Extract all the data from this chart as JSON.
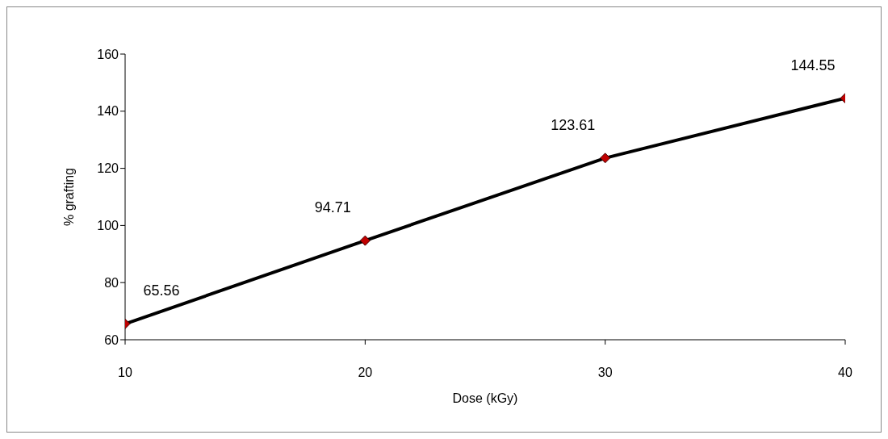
{
  "chart_data": {
    "type": "line",
    "xlabel": "Dose (kGy)",
    "ylabel": "% grafting",
    "x": [
      10,
      20,
      30,
      40
    ],
    "series": [
      {
        "color": "#000000",
        "values": [
          65.56,
          94.71,
          123.61,
          144.55
        ]
      }
    ],
    "xlim": [
      10,
      40
    ],
    "xticks": [
      10,
      20,
      30,
      40
    ],
    "ylim": [
      60,
      160
    ],
    "yticks": [
      60,
      80,
      100,
      120,
      140,
      160
    ],
    "grid": false,
    "legend": false,
    "marker": "diamond",
    "line_style": "solid",
    "data_labels": true
  }
}
